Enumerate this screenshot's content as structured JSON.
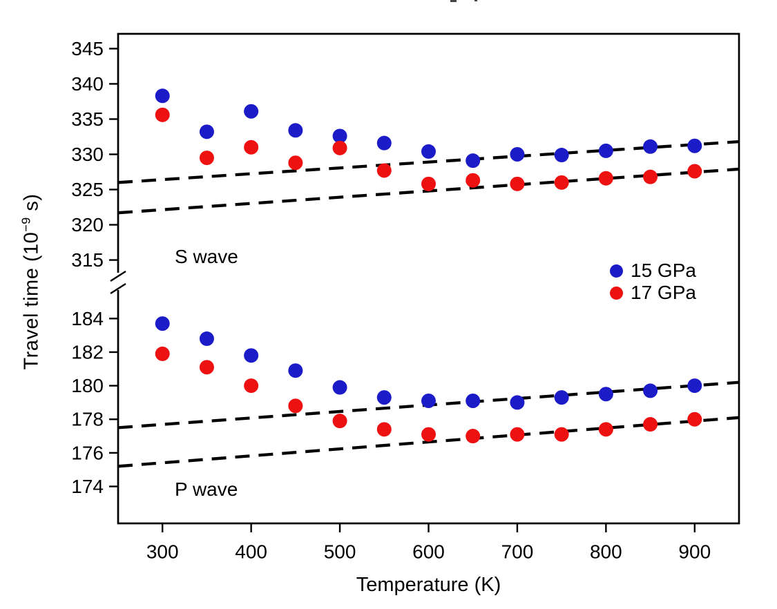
{
  "figure": {
    "background": "#ffffff",
    "frame_color": "#000000",
    "blue": "#1b1bc8",
    "red": "#ee1111"
  },
  "axes": {
    "ylabel_pre": "Travel time (10",
    "ylabel_sup": "−9",
    "ylabel_post": " s)"
  },
  "chart_data": {
    "type": "scatter",
    "title": "",
    "xlabel": "Temperature (K)",
    "ylabel": "Travel time (10^-9 s)",
    "xlim": [
      250,
      950
    ],
    "x_ticks": [
      300,
      400,
      500,
      600,
      700,
      800,
      900
    ],
    "grid": false,
    "axis_break": true,
    "x_values_K": [
      300,
      350,
      400,
      450,
      500,
      550,
      600,
      650,
      700,
      750,
      800,
      850,
      900
    ],
    "panels": [
      {
        "id": "S",
        "label": "S wave",
        "ylim": [
          312.9,
          347.1
        ],
        "yticks": [
          315,
          320,
          325,
          330,
          335,
          340,
          345
        ]
      },
      {
        "id": "P",
        "label": "P wave",
        "ylim": [
          171.8,
          185.7
        ],
        "yticks": [
          174,
          176,
          178,
          180,
          182,
          184
        ]
      }
    ],
    "series": [
      {
        "name": "15 GPa",
        "panel": "S",
        "marker": "circle",
        "marker_color": "#1b1bc8",
        "values": [
          338.3,
          333.2,
          336.1,
          333.4,
          332.6,
          331.6,
          330.4,
          329.1,
          330.0,
          329.9,
          330.5,
          331.1,
          331.2
        ]
      },
      {
        "name": "17 GPa",
        "panel": "S",
        "marker": "circle",
        "marker_color": "#ee1111",
        "values": [
          335.6,
          329.5,
          331.0,
          328.8,
          330.9,
          327.7,
          325.8,
          326.3,
          325.8,
          326.0,
          326.6,
          326.8,
          327.6
        ]
      },
      {
        "name": "15 GPa",
        "panel": "P",
        "marker": "circle",
        "marker_color": "#1b1bc8",
        "values": [
          183.7,
          182.8,
          181.8,
          180.9,
          179.9,
          179.3,
          179.1,
          179.1,
          179.0,
          179.3,
          179.5,
          179.7,
          180.0
        ]
      },
      {
        "name": "17 GPa",
        "panel": "P",
        "marker": "circle",
        "marker_color": "#ee1111",
        "values": [
          181.9,
          181.1,
          180.0,
          178.8,
          177.9,
          177.4,
          177.1,
          177.0,
          177.1,
          177.1,
          177.4,
          177.7,
          178.0
        ]
      }
    ],
    "fit_lines": [
      {
        "panel": "S",
        "series": "15 GPa",
        "style": "dashed",
        "color": "#000000",
        "x": [
          250,
          950
        ],
        "y": [
          326.0,
          331.8
        ]
      },
      {
        "panel": "S",
        "series": "17 GPa",
        "style": "dashed",
        "color": "#000000",
        "x": [
          250,
          950
        ],
        "y": [
          321.7,
          327.9
        ]
      },
      {
        "panel": "P",
        "series": "15 GPa",
        "style": "dashed",
        "color": "#000000",
        "x": [
          250,
          950
        ],
        "y": [
          177.5,
          180.2
        ]
      },
      {
        "panel": "P",
        "series": "17 GPa",
        "style": "dashed",
        "color": "#000000",
        "x": [
          250,
          950
        ],
        "y": [
          175.2,
          178.1
        ]
      }
    ],
    "legend": {
      "position": "middle-right",
      "entries": [
        {
          "label": "15 GPa",
          "color": "#1b1bc8"
        },
        {
          "label": "17 GPa",
          "color": "#ee1111"
        }
      ]
    }
  }
}
